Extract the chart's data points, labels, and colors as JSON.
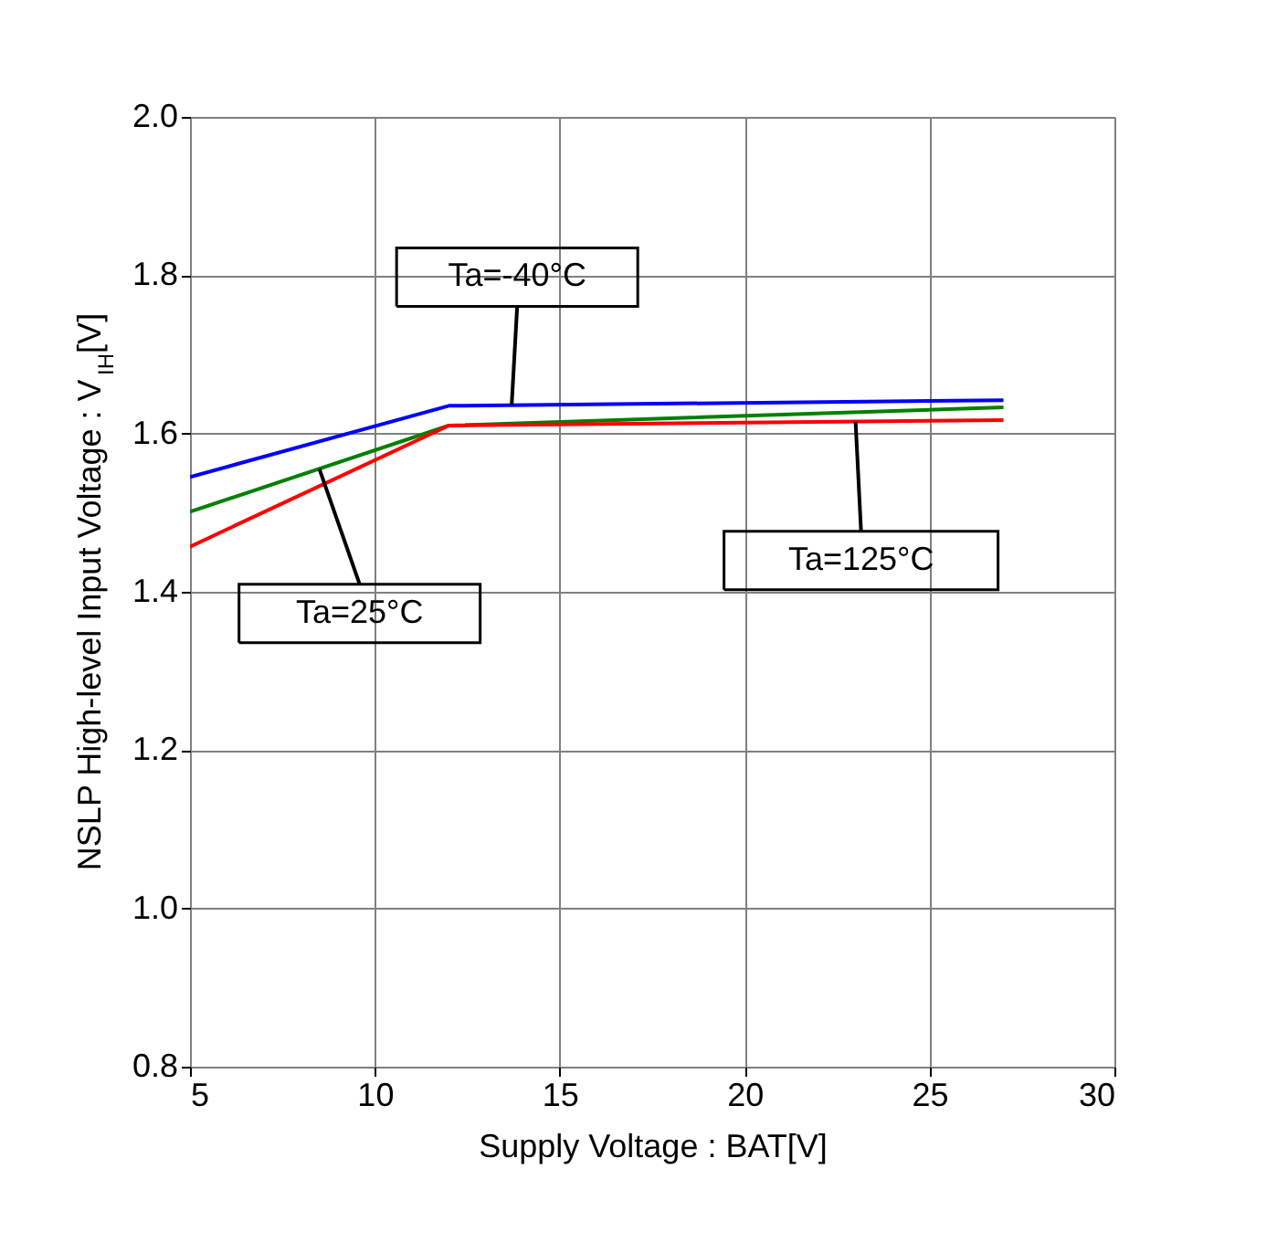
{
  "chart_data": {
    "type": "line",
    "xlabel": "Supply Voltage : BAT[V]",
    "ylabel": "NSLP High-level Input Voltage : V$_{IH}$[V]",
    "x": [
      5,
      12,
      27
    ],
    "series": [
      {
        "color": "#0000ff",
        "values": [
          1.545,
          1.635,
          1.642
        ]
      },
      {
        "color": "#008000",
        "values": [
          1.501,
          1.61,
          1.633
        ]
      },
      {
        "color": "#ff0000",
        "values": [
          1.457,
          1.61,
          1.617
        ]
      }
    ],
    "xlim": [
      5,
      30
    ],
    "xticks": [
      5,
      10,
      15,
      20,
      25,
      30
    ],
    "ylim": [
      0.8,
      2.0
    ],
    "yticks": [
      0.8,
      {
        "value": 1.0,
        "label": "1.0"
      },
      1.2,
      1.4,
      1.6,
      1.8,
      {
        "value": 2.0,
        "label": "2.0"
      }
    ],
    "grid": true,
    "legend": false,
    "marker": "none",
    "line_style": "solid",
    "annotations": [
      {
        "text": "Ta=-40°C",
        "x": 13.7,
        "y": 1.636
      },
      {
        "text": "Ta=25°C",
        "x": 8.5,
        "y": 1.555
      },
      {
        "text": "Ta=125°C",
        "x": 23,
        "y": 1.615
      }
    ]
  }
}
